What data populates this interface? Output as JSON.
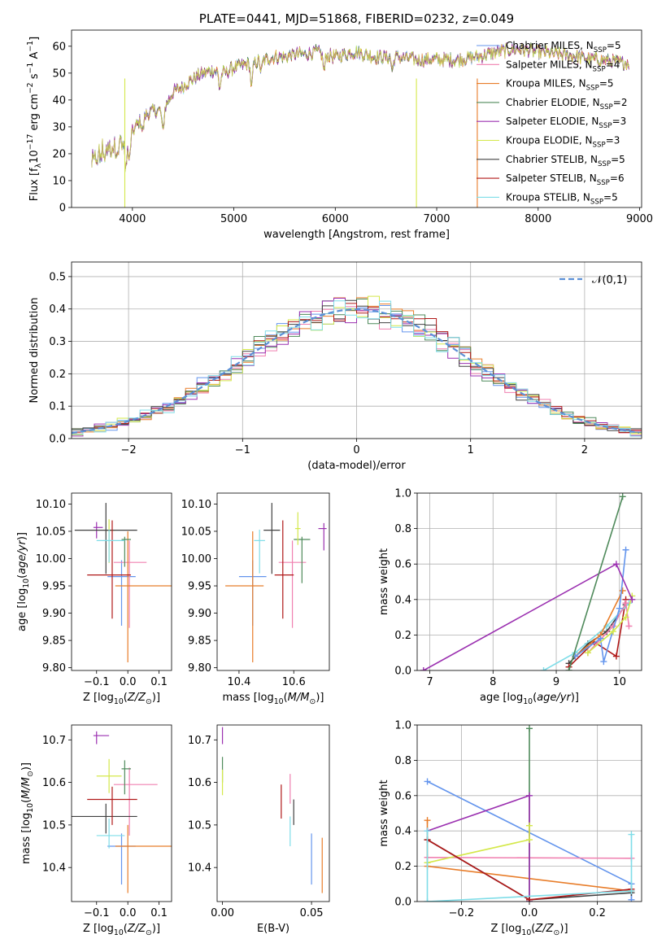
{
  "chart_data": [
    {
      "id": "spectrum",
      "type": "line",
      "title": "PLATE=0441, MJD=51868, FIBERID=0232, z=0.049",
      "xlabel": "wavelength [Angstrom, rest frame]",
      "ylabel": "Flux [f$_\\lambda$10$^{-17}$ erg cm$^{-2}$ s$^{-1}$ A$^{-1}$]",
      "xlim": [
        3400,
        9020
      ],
      "ylim": [
        0,
        66
      ],
      "xticks": [
        4000,
        5000,
        6000,
        7000,
        8000,
        9000
      ],
      "yticks": [
        0,
        10,
        20,
        30,
        40,
        50,
        60
      ],
      "legend_position": "right",
      "continuum_wavelength": [
        3600,
        3700,
        3800,
        3900,
        4000,
        4100,
        4200,
        4300,
        4400,
        4500,
        4600,
        4700,
        4800,
        4900,
        5000,
        5100,
        5200,
        5300,
        5400,
        5500,
        5600,
        5700,
        5800,
        5900,
        6000,
        6200,
        6400,
        6600,
        6800,
        7000,
        7200,
        7400,
        7600,
        7800,
        8000,
        8200,
        8400,
        8600,
        8800,
        8900
      ],
      "continuum_flux": [
        16,
        20,
        22,
        24,
        28,
        34,
        36,
        36,
        43,
        45,
        48,
        50,
        51,
        50,
        52,
        53,
        54,
        55,
        56,
        56,
        57,
        57,
        58,
        57,
        56,
        58,
        56,
        56,
        55,
        55,
        55,
        56,
        58,
        59,
        58,
        57,
        56,
        55,
        54,
        54
      ],
      "series": [
        {
          "name": "Chabrier MILES, N$_{SSP}$=5",
          "color": "#6495ED"
        },
        {
          "name": "Salpeter MILES, N$_{SSP}$=4",
          "color": "#F080B0"
        },
        {
          "name": "Kroupa MILES, N$_{SSP}$=5",
          "color": "#E87D2A"
        },
        {
          "name": "Chabrier ELODIE, N$_{SSP}$=2",
          "color": "#4F8A5B"
        },
        {
          "name": "Salpeter ELODIE, N$_{SSP}$=3",
          "color": "#9B30B0"
        },
        {
          "name": "Kroupa ELODIE, N$_{SSP}$=3",
          "color": "#D4E84A"
        },
        {
          "name": "Chabrier STELIB, N$_{SSP}$=5",
          "color": "#404040"
        },
        {
          "name": "Salpeter STELIB, N$_{SSP}$=6",
          "color": "#B01818"
        },
        {
          "name": "Kroupa STELIB, N$_{SSP}$=5",
          "color": "#7FDDE8"
        }
      ]
    },
    {
      "id": "residuals",
      "type": "step",
      "xlabel": "(data-model)/error",
      "ylabel": "Normed distribution",
      "xlim": [
        -2.5,
        2.5
      ],
      "ylim": [
        0,
        0.545
      ],
      "xticks": [
        -2,
        -1,
        0,
        1,
        2
      ],
      "yticks": [
        0.0,
        0.1,
        0.2,
        0.3,
        0.4,
        0.5
      ],
      "grid": true,
      "legend": "$\\mathcal{N}(0,1)$",
      "legend_position": "top-right",
      "bin_width": 0.1
    },
    {
      "id": "age_vs_Z",
      "type": "errorbar",
      "xlabel": "Z [log$_{10}$($Z/Z_\\odot$)]",
      "ylabel": "age  [log$_{10}$($age/yr$)]",
      "xlim": [
        -0.18,
        0.14
      ],
      "ylim": [
        9.795,
        10.12
      ],
      "xticks": [
        -0.1,
        0.0,
        0.1
      ],
      "xticklabels": [
        "−0.1",
        "0.0",
        "0.1"
      ],
      "yticks": [
        9.8,
        9.85,
        9.9,
        9.95,
        10.0,
        10.05,
        10.1
      ],
      "yticklabels": [
        "9.80",
        "9.85",
        "9.90",
        "9.95",
        "10.00",
        "10.05",
        "10.10"
      ],
      "points": [
        {
          "x": -0.02,
          "y": 9.967,
          "xerr": [
            0.045,
            0.045
          ],
          "yerr": [
            0.09,
            0.03
          ],
          "color": "#6495ED"
        },
        {
          "x": 0.005,
          "y": 9.993,
          "xerr": [
            0.05,
            0.055
          ],
          "yerr": [
            0.12,
            0.04
          ],
          "color": "#F080B0"
        },
        {
          "x": 0.0,
          "y": 9.95,
          "xerr": [
            0.04,
            0.14
          ],
          "yerr": [
            0.14,
            0.1
          ],
          "color": "#E87D2A"
        },
        {
          "x": -0.01,
          "y": 10.035,
          "xerr": [
            0.01,
            0.02
          ],
          "yerr": [
            0.05,
            0.005
          ],
          "color": "#4F8A5B"
        },
        {
          "x": -0.1,
          "y": 10.057,
          "xerr": [
            0.01,
            0.02
          ],
          "yerr": [
            0.02,
            0.01
          ],
          "color": "#9B30B0"
        },
        {
          "x": -0.06,
          "y": 10.052,
          "xerr": [
            0.01,
            0.02
          ],
          "yerr": [
            0.06,
            0.02
          ],
          "color": "#D4E84A"
        },
        {
          "x": -0.07,
          "y": 10.052,
          "xerr": [
            0.1,
            0.1
          ],
          "yerr": [
            0.08,
            0.05
          ],
          "color": "#404040"
        },
        {
          "x": -0.05,
          "y": 9.97,
          "xerr": [
            0.08,
            0.06
          ],
          "yerr": [
            0.08,
            0.1
          ],
          "color": "#B01818"
        },
        {
          "x": -0.06,
          "y": 10.033,
          "xerr": [
            0.04,
            0.05
          ],
          "yerr": [
            0.04,
            0.02
          ],
          "color": "#7FDDE8"
        }
      ]
    },
    {
      "id": "age_vs_mass",
      "type": "errorbar",
      "xlabel": "mass [log$_{10}$($M/M_\\odot$)]",
      "xlim": [
        10.32,
        10.73
      ],
      "ylim": [
        9.795,
        10.12
      ],
      "xticks": [
        10.4,
        10.6
      ],
      "xticklabels": [
        "10.4",
        "10.6"
      ],
      "yticks": [
        9.8,
        9.85,
        9.9,
        9.95,
        10.0,
        10.05,
        10.1
      ],
      "yticklabels": [
        "9.80",
        "9.85",
        "9.90",
        "9.95",
        "10.00",
        "10.05",
        "10.10"
      ],
      "points": [
        {
          "x": 10.45,
          "y": 9.967,
          "xerr": [
            0.05,
            0.05
          ],
          "yerr": [
            0.09,
            0.03
          ],
          "color": "#6495ED"
        },
        {
          "x": 10.595,
          "y": 9.993,
          "xerr": [
            0.05,
            0.05
          ],
          "yerr": [
            0.12,
            0.04
          ],
          "color": "#F080B0"
        },
        {
          "x": 10.45,
          "y": 9.95,
          "xerr": [
            0.1,
            0.04
          ],
          "yerr": [
            0.14,
            0.1
          ],
          "color": "#E87D2A"
        },
        {
          "x": 10.63,
          "y": 10.035,
          "xerr": [
            0.03,
            0.03
          ],
          "yerr": [
            0.08,
            0.005
          ],
          "color": "#4F8A5B"
        },
        {
          "x": 10.71,
          "y": 10.055,
          "xerr": [
            0.02,
            0.01
          ],
          "yerr": [
            0.04,
            0.01
          ],
          "color": "#9B30B0"
        },
        {
          "x": 10.615,
          "y": 10.055,
          "xerr": [
            0.01,
            0.01
          ],
          "yerr": [
            0.03,
            0.03
          ],
          "color": "#D4E84A"
        },
        {
          "x": 10.52,
          "y": 10.052,
          "xerr": [
            0.03,
            0.03
          ],
          "yerr": [
            0.08,
            0.05
          ],
          "color": "#404040"
        },
        {
          "x": 10.56,
          "y": 9.97,
          "xerr": [
            0.03,
            0.04
          ],
          "yerr": [
            0.08,
            0.1
          ],
          "color": "#B01818"
        },
        {
          "x": 10.475,
          "y": 10.033,
          "xerr": [
            0.02,
            0.02
          ],
          "yerr": [
            0.06,
            0.02
          ],
          "color": "#7FDDE8"
        }
      ]
    },
    {
      "id": "weight_vs_age",
      "type": "line",
      "xlabel": "age  [log$_{10}$($age/yr$)]",
      "ylabel": "mass weight",
      "xlim": [
        6.8,
        10.35
      ],
      "ylim": [
        0,
        1.0
      ],
      "xticks": [
        7,
        8,
        9,
        10
      ],
      "yticks": [
        0.0,
        0.2,
        0.4,
        0.6,
        0.8,
        1.0
      ],
      "yticklabels": [
        "0.0",
        "0.2",
        "0.4",
        "0.6",
        "0.8",
        "1.0"
      ],
      "grid": true,
      "series": [
        {
          "color": "#404040",
          "x": [
            9.2,
            9.5,
            9.8,
            10.1
          ],
          "y": [
            0.04,
            0.15,
            0.22,
            0.37
          ]
        },
        {
          "color": "#B01818",
          "x": [
            9.2,
            9.6,
            9.95,
            10.1
          ],
          "y": [
            0.02,
            0.16,
            0.08,
            0.4
          ]
        },
        {
          "color": "#7FDDE8",
          "x": [
            8.8,
            9.3,
            9.8,
            10.15
          ],
          "y": [
            0.0,
            0.1,
            0.25,
            0.38
          ]
        },
        {
          "color": "#E87D2A",
          "x": [
            9.3,
            9.7,
            10.05
          ],
          "y": [
            0.08,
            0.2,
            0.45
          ]
        },
        {
          "color": "#F080B0",
          "x": [
            9.5,
            9.9,
            10.1,
            10.15
          ],
          "y": [
            0.1,
            0.25,
            0.38,
            0.25
          ]
        },
        {
          "color": "#6495ED",
          "x": [
            9.3,
            9.7,
            9.75,
            10.0,
            10.1
          ],
          "y": [
            0.08,
            0.18,
            0.05,
            0.35,
            0.68
          ]
        },
        {
          "color": "#D4E84A",
          "x": [
            9.5,
            9.9,
            10.1,
            10.2
          ],
          "y": [
            0.1,
            0.22,
            0.3,
            0.42
          ]
        },
        {
          "color": "#9B30B0",
          "x": [
            6.9,
            9.95,
            10.2
          ],
          "y": [
            0.0,
            0.6,
            0.4
          ]
        },
        {
          "color": "#4F8A5B",
          "x": [
            9.2,
            10.05
          ],
          "y": [
            0.0,
            0.98
          ]
        }
      ]
    },
    {
      "id": "mass_vs_Z",
      "type": "errorbar",
      "xlabel": "Z [log$_{10}$($Z/Z_\\odot$)]",
      "ylabel": "mass [log$_{10}$($M/M_\\odot$)]",
      "xlim": [
        -0.18,
        0.14
      ],
      "ylim": [
        10.32,
        10.735
      ],
      "xticks": [
        -0.1,
        0.0,
        0.1
      ],
      "xticklabels": [
        "−0.1",
        "0.0",
        "0.1"
      ],
      "yticks": [
        10.4,
        10.5,
        10.6,
        10.7
      ],
      "yticklabels": [
        "10.4",
        "10.5",
        "10.6",
        "10.7"
      ],
      "points": [
        {
          "x": -0.02,
          "y": 10.45,
          "xerr": [
            0.045,
            0.045
          ],
          "yerr": [
            0.09,
            0.03
          ],
          "color": "#6495ED"
        },
        {
          "x": 0.005,
          "y": 10.595,
          "xerr": [
            0.05,
            0.09
          ],
          "yerr": [
            0.12,
            0.04
          ],
          "color": "#F080B0"
        },
        {
          "x": 0.0,
          "y": 10.45,
          "xerr": [
            0.04,
            0.14
          ],
          "yerr": [
            0.11,
            0.05
          ],
          "color": "#E87D2A"
        },
        {
          "x": -0.01,
          "y": 10.632,
          "xerr": [
            0.01,
            0.02
          ],
          "yerr": [
            0.06,
            0.02
          ],
          "color": "#4F8A5B"
        },
        {
          "x": -0.1,
          "y": 10.71,
          "xerr": [
            0.01,
            0.04
          ],
          "yerr": [
            0.02,
            0.01
          ],
          "color": "#9B30B0"
        },
        {
          "x": -0.06,
          "y": 10.615,
          "xerr": [
            0.04,
            0.04
          ],
          "yerr": [
            0.04,
            0.04
          ],
          "color": "#D4E84A"
        },
        {
          "x": -0.07,
          "y": 10.52,
          "xerr": [
            0.11,
            0.1
          ],
          "yerr": [
            0.04,
            0.03
          ],
          "color": "#404040"
        },
        {
          "x": -0.05,
          "y": 10.56,
          "xerr": [
            0.08,
            0.08
          ],
          "yerr": [
            0.06,
            0.03
          ],
          "color": "#B01818"
        },
        {
          "x": -0.06,
          "y": 10.475,
          "xerr": [
            0.04,
            0.05
          ],
          "yerr": [
            0.03,
            0.04
          ],
          "color": "#7FDDE8"
        }
      ]
    },
    {
      "id": "mass_vs_ebv",
      "type": "errorbar",
      "xlabel": "E(B-V)",
      "xlim": [
        -0.003,
        0.06
      ],
      "ylim": [
        10.32,
        10.735
      ],
      "xticks": [
        0.0,
        0.05
      ],
      "xticklabels": [
        "0.00",
        "0.05"
      ],
      "yticks": [
        10.4,
        10.5,
        10.6,
        10.7
      ],
      "yticklabels": [
        "10.4",
        "10.5",
        "10.6",
        "10.7"
      ],
      "points": [
        {
          "x": 0.05,
          "y": 10.42,
          "yerr": [
            0.06,
            0.06
          ],
          "color": "#6495ED"
        },
        {
          "x": 0.038,
          "y": 10.59,
          "yerr": [
            0.04,
            0.03
          ],
          "color": "#F080B0"
        },
        {
          "x": 0.056,
          "y": 10.4,
          "yerr": [
            0.06,
            0.07
          ],
          "color": "#E87D2A"
        },
        {
          "x": 0.0,
          "y": 10.63,
          "yerr": [
            0.03,
            0.03
          ],
          "color": "#4F8A5B"
        },
        {
          "x": 0.0,
          "y": 10.71,
          "yerr": [
            0.02,
            0.02
          ],
          "color": "#9B30B0"
        },
        {
          "x": 0.0,
          "y": 10.6,
          "yerr": [
            0.03,
            0.03
          ],
          "color": "#D4E84A"
        },
        {
          "x": 0.04,
          "y": 10.53,
          "yerr": [
            0.03,
            0.03
          ],
          "color": "#404040"
        },
        {
          "x": 0.033,
          "y": 10.555,
          "yerr": [
            0.04,
            0.04
          ],
          "color": "#B01818"
        },
        {
          "x": 0.038,
          "y": 10.48,
          "yerr": [
            0.03,
            0.04
          ],
          "color": "#7FDDE8"
        }
      ]
    },
    {
      "id": "weight_vs_Z",
      "type": "line",
      "xlabel": "Z [log$_{10}$($Z/Z_\\odot$)]",
      "ylabel": "mass weight",
      "xlim": [
        -0.33,
        0.33
      ],
      "ylim": [
        0,
        1.0
      ],
      "xticks": [
        -0.2,
        0.0,
        0.2
      ],
      "xticklabels": [
        "−0.2",
        "0.0",
        "0.2"
      ],
      "yticks": [
        0.0,
        0.2,
        0.4,
        0.6,
        0.8,
        1.0
      ],
      "yticklabels": [
        "0.0",
        "0.2",
        "0.4",
        "0.6",
        "0.8",
        "1.0"
      ],
      "grid": true,
      "series": [
        {
          "color": "#6495ED",
          "x": [
            -0.3,
            0.3,
            0.3
          ],
          "y": [
            0.68,
            0.1,
            0.01
          ]
        },
        {
          "color": "#F080B0",
          "x": [
            -0.3,
            0.3
          ],
          "y": [
            0.25,
            0.245
          ]
        },
        {
          "color": "#E87D2A",
          "x": [
            -0.3,
            -0.3,
            0.3
          ],
          "y": [
            0.46,
            0.2,
            0.06
          ]
        },
        {
          "color": "#4F8A5B",
          "x": [
            0.0,
            0.0
          ],
          "y": [
            0.98,
            0.0
          ]
        },
        {
          "color": "#9B30B0",
          "x": [
            -0.3,
            0.0,
            0.0
          ],
          "y": [
            0.4,
            0.6,
            0.0
          ]
        },
        {
          "color": "#D4E84A",
          "x": [
            -0.3,
            0.0,
            0.0
          ],
          "y": [
            0.22,
            0.35,
            0.43
          ]
        },
        {
          "color": "#404040",
          "x": [
            -0.3,
            0.0,
            0.3
          ],
          "y": [
            0.35,
            0.01,
            0.05
          ]
        },
        {
          "color": "#B01818",
          "x": [
            -0.3,
            0.0,
            0.3
          ],
          "y": [
            0.35,
            0.01,
            0.07
          ]
        },
        {
          "color": "#7FDDE8",
          "x": [
            -0.3,
            -0.3,
            0.3,
            0.3
          ],
          "y": [
            0.4,
            0.0,
            0.06,
            0.38
          ]
        }
      ]
    }
  ]
}
